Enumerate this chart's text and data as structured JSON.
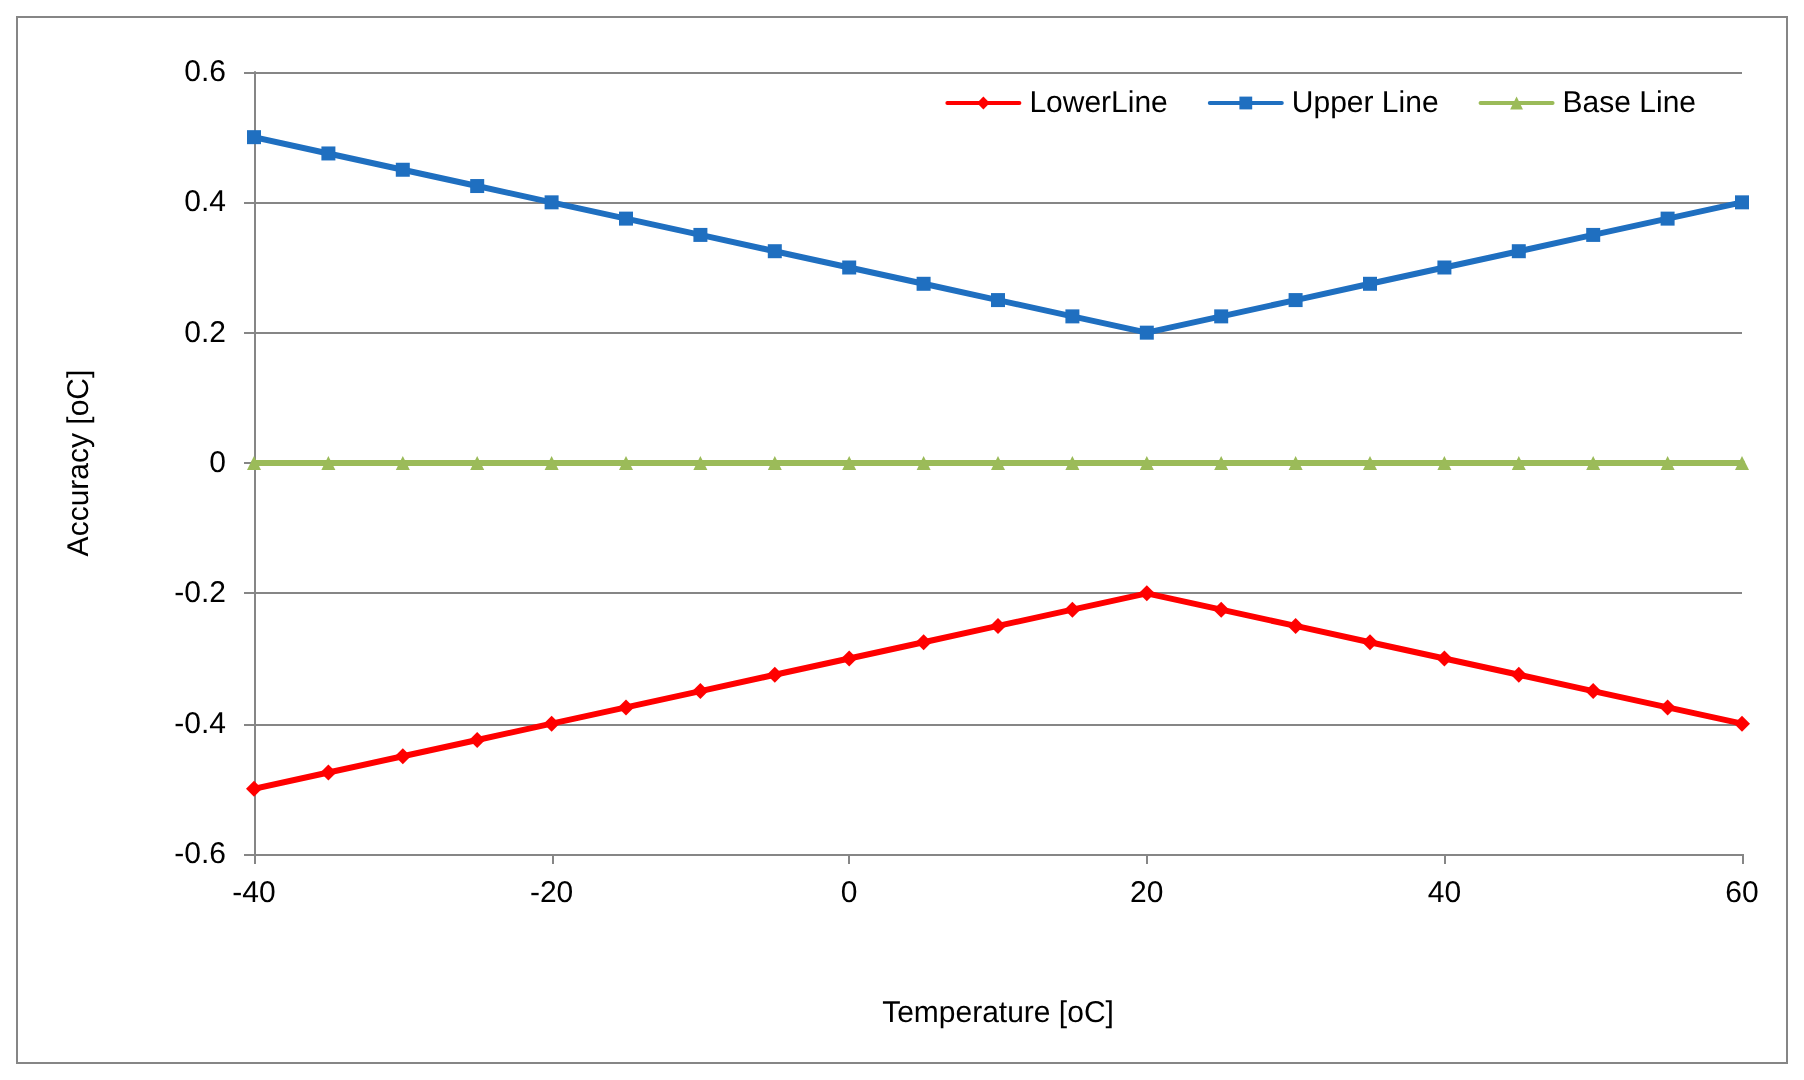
{
  "chart_data": {
    "type": "line",
    "xlabel": "Temperature [oC]",
    "ylabel": "Accuracy [oC]",
    "x": [
      -40,
      -35,
      -30,
      -25,
      -20,
      -15,
      -10,
      -5,
      0,
      5,
      10,
      15,
      20,
      25,
      30,
      35,
      40,
      45,
      50,
      55,
      60
    ],
    "series": [
      {
        "name": "LowerLine",
        "color": "#ff0000",
        "marker": "diamond",
        "values": [
          -0.5,
          -0.475,
          -0.45,
          -0.425,
          -0.4,
          -0.375,
          -0.35,
          -0.325,
          -0.3,
          -0.275,
          -0.25,
          -0.225,
          -0.2,
          -0.225,
          -0.25,
          -0.275,
          -0.3,
          -0.325,
          -0.35,
          -0.375,
          -0.4
        ]
      },
      {
        "name": "Upper Line",
        "color": "#1f6fc0",
        "marker": "square",
        "values": [
          0.5,
          0.475,
          0.45,
          0.425,
          0.4,
          0.375,
          0.35,
          0.325,
          0.3,
          0.275,
          0.25,
          0.225,
          0.2,
          0.225,
          0.25,
          0.275,
          0.3,
          0.325,
          0.35,
          0.375,
          0.4
        ]
      },
      {
        "name": "Base Line",
        "color": "#9bbb59",
        "marker": "triangle",
        "values": [
          0,
          0,
          0,
          0,
          0,
          0,
          0,
          0,
          0,
          0,
          0,
          0,
          0,
          0,
          0,
          0,
          0,
          0,
          0,
          0,
          0
        ]
      }
    ],
    "xlim": [
      -40,
      60
    ],
    "xticks": [
      -40,
      -20,
      0,
      20,
      40,
      60
    ],
    "ylim": [
      -0.6,
      0.6
    ],
    "yticks": [
      -0.6,
      -0.4,
      -0.2,
      0,
      0.2,
      0.4,
      0.6
    ],
    "grid": "y",
    "legend": "top right",
    "line_style": "solid"
  }
}
